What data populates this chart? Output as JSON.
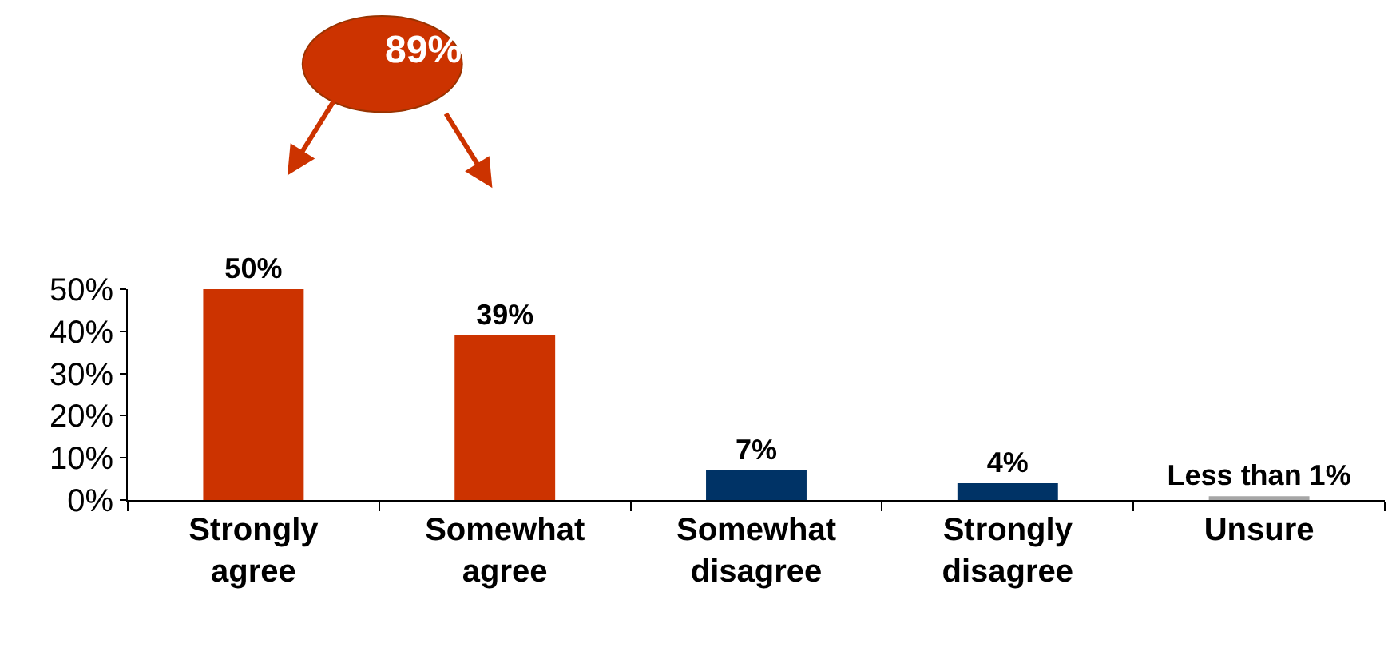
{
  "chart_data": {
    "type": "bar",
    "categories": [
      "Strongly agree",
      "Somewhat agree",
      "Somewhat disagree",
      "Strongly disagree",
      "Unsure"
    ],
    "values": [
      50,
      39,
      7,
      4,
      0.9
    ],
    "colors": [
      "#cc3300",
      "#cc3300",
      "#003366",
      "#003366",
      "#a6a6a6"
    ],
    "value_labels": [
      "50%",
      "39%",
      "7%",
      "4%",
      "Less than 1%"
    ],
    "ylim": [
      0,
      50
    ],
    "yticks": [
      {
        "value": 0,
        "label": "0%"
      },
      {
        "value": 10,
        "label": "10%"
      },
      {
        "value": 20,
        "label": "20%"
      },
      {
        "value": 30,
        "label": "30%"
      },
      {
        "value": 40,
        "label": "40%"
      },
      {
        "value": 50,
        "label": "50%"
      }
    ],
    "annotations": [
      "89%"
    ],
    "legend": false
  }
}
